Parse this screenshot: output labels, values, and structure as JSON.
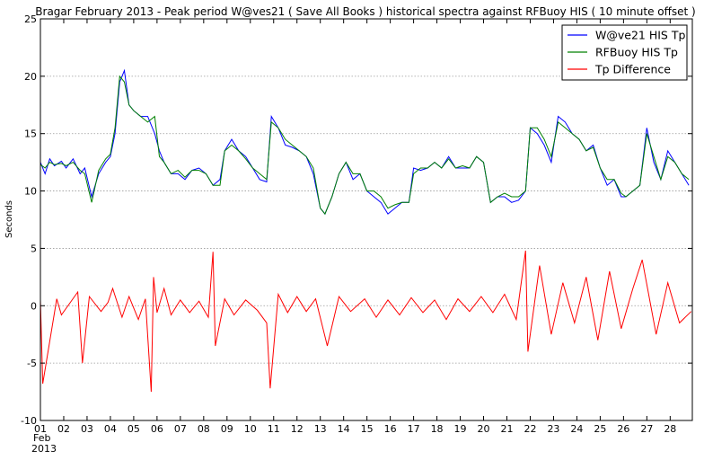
{
  "chart_data": {
    "type": "line",
    "title": "Bragar February 2013 - Peak period W@ves21 ( Save All Books ) historical spectra against RFBuoy HIS ( 10 minute offset )",
    "ylabel": "Seconds",
    "xlabel": "",
    "ylim": [
      -10,
      25
    ],
    "xlim": [
      1,
      28.95
    ],
    "yticks": [
      -10,
      -5,
      0,
      5,
      10,
      15,
      20,
      25
    ],
    "xticks": [
      1,
      2,
      3,
      4,
      5,
      6,
      7,
      8,
      9,
      10,
      11,
      12,
      13,
      14,
      15,
      16,
      17,
      18,
      19,
      20,
      21,
      22,
      23,
      24,
      25,
      26,
      27,
      28
    ],
    "xtick_labels": [
      "01",
      "02",
      "03",
      "04",
      "05",
      "06",
      "07",
      "08",
      "09",
      "10",
      "11",
      "12",
      "13",
      "14",
      "15",
      "16",
      "17",
      "18",
      "19",
      "20",
      "21",
      "22",
      "23",
      "24",
      "25",
      "26",
      "27",
      "28"
    ],
    "x_sublabel": [
      "Feb",
      "2013"
    ],
    "grid": "horizontal dotted",
    "legend_position": "top-right",
    "colors": {
      "waves21": "#0000ff",
      "rfbuoy": "#008000",
      "difference": "#ff0000",
      "grid": "#999999"
    },
    "series": [
      {
        "name": "W@ve21 HIS Tp",
        "key": "waves21",
        "x": [
          1.0,
          1.2,
          1.4,
          1.6,
          1.9,
          2.1,
          2.4,
          2.7,
          2.9,
          3.2,
          3.5,
          3.8,
          4.0,
          4.2,
          4.4,
          4.6,
          4.8,
          5.0,
          5.3,
          5.6,
          5.9,
          6.1,
          6.3,
          6.6,
          6.9,
          7.2,
          7.5,
          7.8,
          8.1,
          8.4,
          8.7,
          8.9,
          9.2,
          9.5,
          9.8,
          10.1,
          10.4,
          10.7,
          10.9,
          11.2,
          11.5,
          11.8,
          12.1,
          12.4,
          12.7,
          13.0,
          13.2,
          13.5,
          13.8,
          14.1,
          14.4,
          14.7,
          15.0,
          15.3,
          15.6,
          15.9,
          16.2,
          16.5,
          16.8,
          17.0,
          17.3,
          17.6,
          17.9,
          18.2,
          18.5,
          18.8,
          19.1,
          19.4,
          19.7,
          20.0,
          20.3,
          20.6,
          20.9,
          21.2,
          21.5,
          21.8,
          22.0,
          22.3,
          22.6,
          22.9,
          23.2,
          23.5,
          23.8,
          24.1,
          24.4,
          24.7,
          25.0,
          25.3,
          25.6,
          25.9,
          26.1,
          26.4,
          26.7,
          27.0,
          27.3,
          27.6,
          27.9,
          28.2,
          28.5,
          28.8
        ],
        "y": [
          12.5,
          11.5,
          12.8,
          12.2,
          12.6,
          12.0,
          12.8,
          11.5,
          12.0,
          9.5,
          11.5,
          12.5,
          13.0,
          15.0,
          19.5,
          20.5,
          17.5,
          17.0,
          16.5,
          16.5,
          15.0,
          13.5,
          12.5,
          11.5,
          11.5,
          11.0,
          11.8,
          12.0,
          11.5,
          10.5,
          11.0,
          13.5,
          14.5,
          13.5,
          13.0,
          12.0,
          11.0,
          10.8,
          16.5,
          15.5,
          14.0,
          13.8,
          13.5,
          13.0,
          11.5,
          8.5,
          8.0,
          9.5,
          11.5,
          12.5,
          11.0,
          11.5,
          10.0,
          9.5,
          9.0,
          8.0,
          8.5,
          9.0,
          9.0,
          12.0,
          11.8,
          12.0,
          12.5,
          12.0,
          13.0,
          12.0,
          12.0,
          12.0,
          13.0,
          12.5,
          9.0,
          9.5,
          9.5,
          9.0,
          9.2,
          10.0,
          15.5,
          15.0,
          14.0,
          12.5,
          16.5,
          16.0,
          15.0,
          14.5,
          13.5,
          14.0,
          12.0,
          10.5,
          11.0,
          9.5,
          9.5,
          10.0,
          10.5,
          15.5,
          12.5,
          11.0,
          13.5,
          12.5,
          11.5,
          10.5
        ]
      },
      {
        "name": "RFBuoy HIS Tp",
        "key": "rfbuoy",
        "x": [
          1.0,
          1.2,
          1.4,
          1.6,
          1.9,
          2.1,
          2.4,
          2.7,
          2.9,
          3.2,
          3.5,
          3.8,
          4.0,
          4.2,
          4.4,
          4.6,
          4.8,
          5.0,
          5.3,
          5.6,
          5.9,
          6.1,
          6.3,
          6.6,
          6.9,
          7.2,
          7.5,
          7.8,
          8.1,
          8.4,
          8.7,
          8.9,
          9.2,
          9.5,
          9.8,
          10.1,
          10.4,
          10.7,
          10.9,
          11.2,
          11.5,
          11.8,
          12.1,
          12.4,
          12.7,
          13.0,
          13.2,
          13.5,
          13.8,
          14.1,
          14.4,
          14.7,
          15.0,
          15.3,
          15.6,
          15.9,
          16.2,
          16.5,
          16.8,
          17.0,
          17.3,
          17.6,
          17.9,
          18.2,
          18.5,
          18.8,
          19.1,
          19.4,
          19.7,
          20.0,
          20.3,
          20.6,
          20.9,
          21.2,
          21.5,
          21.8,
          22.0,
          22.3,
          22.6,
          22.9,
          23.2,
          23.5,
          23.8,
          24.1,
          24.4,
          24.7,
          25.0,
          25.3,
          25.6,
          25.9,
          26.1,
          26.4,
          26.7,
          27.0,
          27.3,
          27.6,
          27.9,
          28.2,
          28.5,
          28.8
        ],
        "y": [
          12.3,
          12.0,
          12.5,
          12.3,
          12.4,
          12.2,
          12.5,
          11.8,
          11.5,
          9.0,
          11.8,
          12.8,
          13.2,
          15.5,
          20.0,
          19.5,
          17.5,
          17.0,
          16.5,
          16.0,
          16.5,
          13.0,
          12.5,
          11.5,
          11.8,
          11.2,
          11.8,
          11.8,
          11.5,
          10.5,
          10.5,
          13.5,
          14.0,
          13.5,
          12.8,
          12.0,
          11.5,
          11.0,
          16.0,
          15.5,
          14.5,
          14.0,
          13.5,
          13.0,
          12.0,
          8.5,
          8.0,
          9.5,
          11.5,
          12.5,
          11.5,
          11.5,
          10.0,
          10.0,
          9.5,
          8.5,
          8.8,
          9.0,
          9.0,
          11.5,
          12.0,
          12.0,
          12.5,
          12.0,
          12.8,
          12.0,
          12.2,
          12.0,
          13.0,
          12.5,
          9.0,
          9.5,
          9.8,
          9.5,
          9.5,
          10.0,
          15.5,
          15.5,
          14.5,
          13.0,
          16.0,
          15.5,
          15.0,
          14.5,
          13.5,
          13.8,
          12.0,
          11.0,
          11.0,
          9.8,
          9.5,
          10.0,
          10.5,
          15.0,
          13.0,
          11.0,
          13.0,
          12.5,
          11.5,
          11.0
        ]
      },
      {
        "name": "Tp Difference",
        "key": "difference",
        "x": [
          1.0,
          1.1,
          1.7,
          1.9,
          2.6,
          2.8,
          3.1,
          3.6,
          3.9,
          4.1,
          4.5,
          4.8,
          5.2,
          5.5,
          5.75,
          5.85,
          6.0,
          6.3,
          6.6,
          7.0,
          7.4,
          7.8,
          8.2,
          8.4,
          8.5,
          8.9,
          9.3,
          9.8,
          10.3,
          10.7,
          10.85,
          11.2,
          11.6,
          12.0,
          12.4,
          12.8,
          13.3,
          13.8,
          14.3,
          14.9,
          15.4,
          15.9,
          16.4,
          16.9,
          17.4,
          17.9,
          18.4,
          18.9,
          19.4,
          19.9,
          20.4,
          20.9,
          21.4,
          21.8,
          21.9,
          22.4,
          22.9,
          23.4,
          23.9,
          24.4,
          24.9,
          25.4,
          25.9,
          26.4,
          26.8,
          27.4,
          27.9,
          28.4,
          28.9
        ],
        "y": [
          0.5,
          -6.8,
          0.6,
          -0.8,
          1.2,
          -5.0,
          0.8,
          -0.5,
          0.3,
          1.5,
          -1.0,
          0.8,
          -1.2,
          0.6,
          -7.5,
          2.5,
          -0.6,
          1.5,
          -0.8,
          0.5,
          -0.6,
          0.4,
          -1.0,
          4.7,
          -3.5,
          0.6,
          -0.8,
          0.5,
          -0.4,
          -1.5,
          -7.2,
          1.0,
          -0.6,
          0.8,
          -0.5,
          0.6,
          -3.5,
          0.8,
          -0.5,
          0.6,
          -1.0,
          0.5,
          -0.8,
          0.7,
          -0.6,
          0.5,
          -1.2,
          0.6,
          -0.5,
          0.8,
          -0.6,
          1.0,
          -1.2,
          4.8,
          -4.0,
          3.5,
          -2.5,
          2.0,
          -1.5,
          2.5,
          -3.0,
          3.0,
          -2.0,
          1.5,
          4.0,
          -2.5,
          2.0,
          -1.5,
          -0.5
        ]
      }
    ]
  }
}
